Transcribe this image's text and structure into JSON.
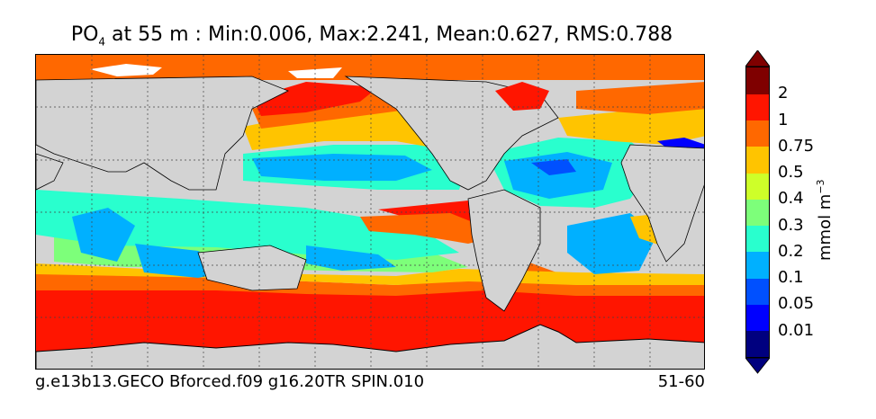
{
  "title": {
    "variable": "PO",
    "subscript": "4",
    "rest": " at 55 m : Min:0.006, Max:2.241, Mean:0.627, RMS:0.788"
  },
  "caption": {
    "left": "g.e13b13.GECO Bforced.f09 g16.20TR SPIN.010",
    "right": "51-60"
  },
  "colorbar": {
    "unit_base": "mmol m",
    "unit_exp": "−3",
    "tick_labels": [
      "2",
      "1",
      "0.75",
      "0.5",
      "0.4",
      "0.3",
      "0.2",
      "0.1",
      "0.05",
      "0.01"
    ],
    "colors_bottom_to_top": [
      "#00007f",
      "#0000ff",
      "#0050ff",
      "#00b0ff",
      "#29ffce",
      "#7dff7a",
      "#ceff29",
      "#ffc400",
      "#ff6800",
      "#ff1500",
      "#7f0000"
    ],
    "under_color": "#00007f",
    "over_color": "#7f0000"
  },
  "map_colors": {
    "land": "#d3d3d3",
    "ice": "#ffffff"
  }
}
